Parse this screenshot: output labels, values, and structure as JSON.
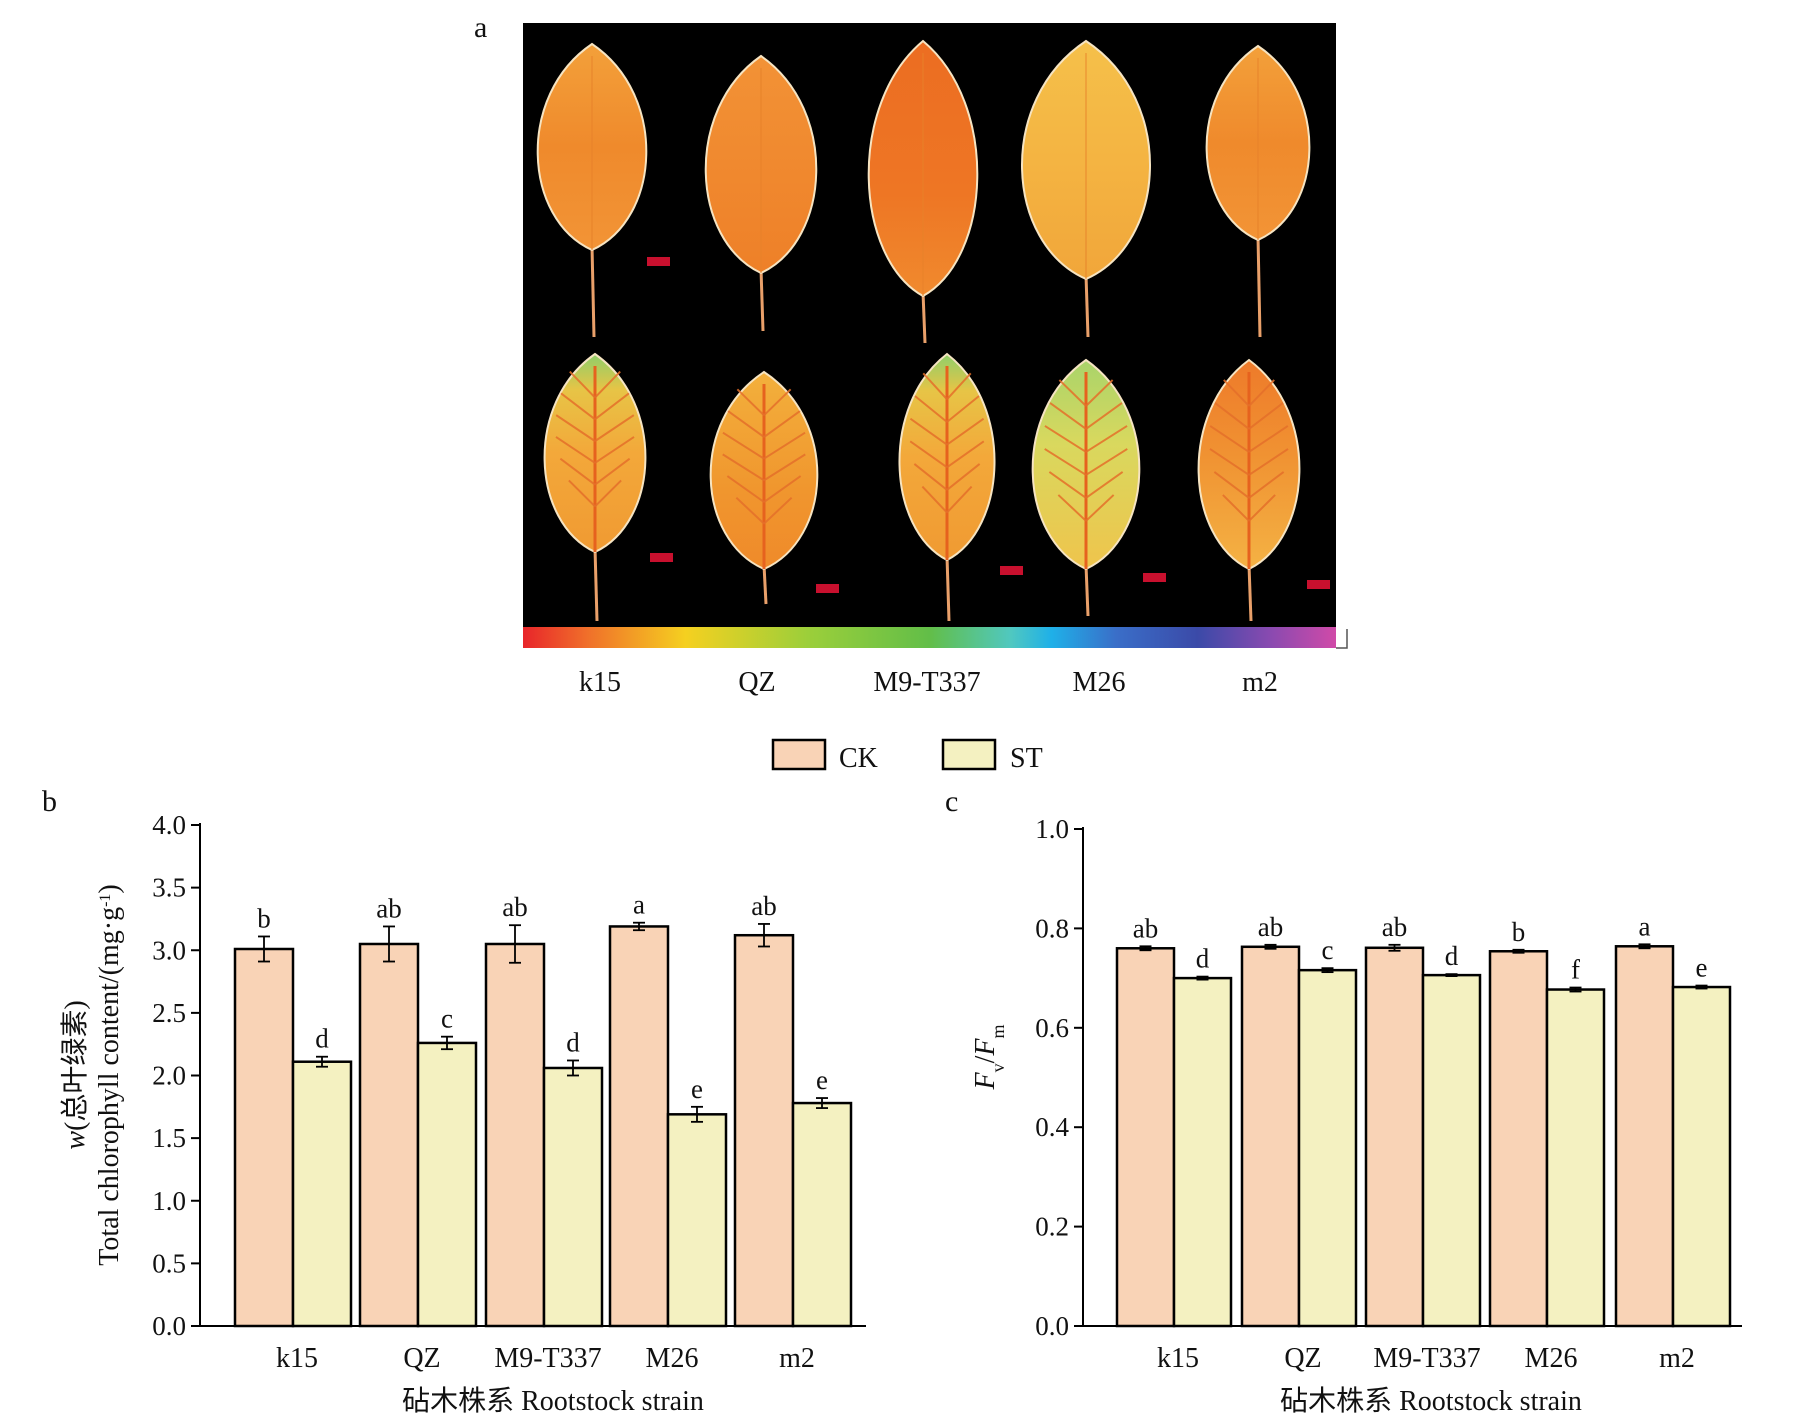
{
  "figure": {
    "panel_labels": {
      "a": "a",
      "b": "b",
      "c": "c"
    },
    "panel_a": {
      "rootstocks": [
        "k15",
        "QZ",
        "M9-T337",
        "M26",
        "m2"
      ]
    },
    "legend": [
      {
        "label": "CK",
        "color": "#f9d3b6"
      },
      {
        "label": "ST",
        "color": "#f4f1c1"
      }
    ]
  },
  "colors": {
    "ck_bar": "#f9d3b6",
    "st_bar": "#f4f1c1",
    "outline": "#000000",
    "image_background": "#000000"
  },
  "chart_data": [
    {
      "panel": "b",
      "type": "bar",
      "categories": [
        "k15",
        "QZ",
        "M9-T337",
        "M26",
        "m2"
      ],
      "series": [
        {
          "name": "CK",
          "values": [
            3.01,
            3.05,
            3.05,
            3.19,
            3.12
          ],
          "errors": [
            0.1,
            0.14,
            0.15,
            0.03,
            0.09
          ],
          "letters": [
            "b",
            "ab",
            "ab",
            "a",
            "ab"
          ]
        },
        {
          "name": "ST",
          "values": [
            2.11,
            2.26,
            2.06,
            1.69,
            1.78
          ],
          "errors": [
            0.04,
            0.05,
            0.06,
            0.06,
            0.04
          ],
          "letters": [
            "d",
            "c",
            "d",
            "e",
            "e"
          ]
        }
      ],
      "ylim": [
        0,
        4.0
      ],
      "yticks": [
        "0.0",
        "0.5",
        "1.0",
        "1.5",
        "2.0",
        "2.5",
        "3.0",
        "3.5",
        "4.0"
      ],
      "ylabel_lines": [
        [
          [
            "w",
            "italic"
          ],
          [
            "(总叶绿素)",
            ""
          ]
        ],
        [
          [
            "Total chlorophyll content/(mg·g",
            ""
          ],
          [
            "-1",
            "sup"
          ],
          [
            ")",
            ""
          ]
        ]
      ],
      "xlabel": "砧木株系 Rootstock strain",
      "grid": false
    },
    {
      "panel": "c",
      "type": "bar",
      "categories": [
        "k15",
        "QZ",
        "M9-T337",
        "M26",
        "m2"
      ],
      "series": [
        {
          "name": "CK",
          "values": [
            0.76,
            0.763,
            0.761,
            0.754,
            0.764
          ],
          "errors": [
            0.004,
            0.004,
            0.006,
            0.003,
            0.004
          ],
          "letters": [
            "ab",
            "ab",
            "ab",
            "b",
            "a"
          ]
        },
        {
          "name": "ST",
          "values": [
            0.7,
            0.716,
            0.706,
            0.677,
            0.682
          ],
          "errors": [
            0.003,
            0.004,
            0.002,
            0.004,
            0.003
          ],
          "letters": [
            "d",
            "c",
            "d",
            "f",
            "e"
          ]
        }
      ],
      "ylim": [
        0,
        1.0
      ],
      "yticks": [
        "0.0",
        "0.2",
        "0.4",
        "0.6",
        "0.8",
        "1.0"
      ],
      "ylabel_lines": [
        [
          [
            "F",
            "italic"
          ],
          [
            "v",
            "sub"
          ],
          [
            "/",
            ""
          ],
          [
            "F",
            "italic"
          ],
          [
            "m",
            "sub"
          ]
        ]
      ],
      "xlabel": "砧木株系 Rootstock strain",
      "grid": false
    }
  ]
}
